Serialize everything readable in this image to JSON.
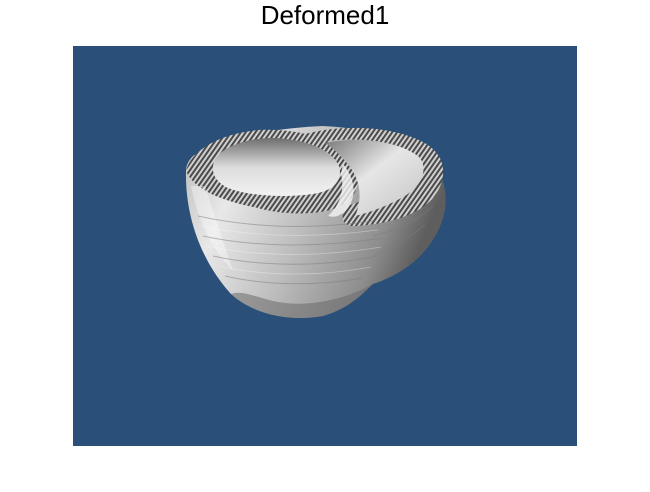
{
  "figure": {
    "title": "Deformed1"
  },
  "render": {
    "background_color": "#2a4f78",
    "surface_color": "#c8c8c8",
    "page_color": "#ffffff"
  }
}
